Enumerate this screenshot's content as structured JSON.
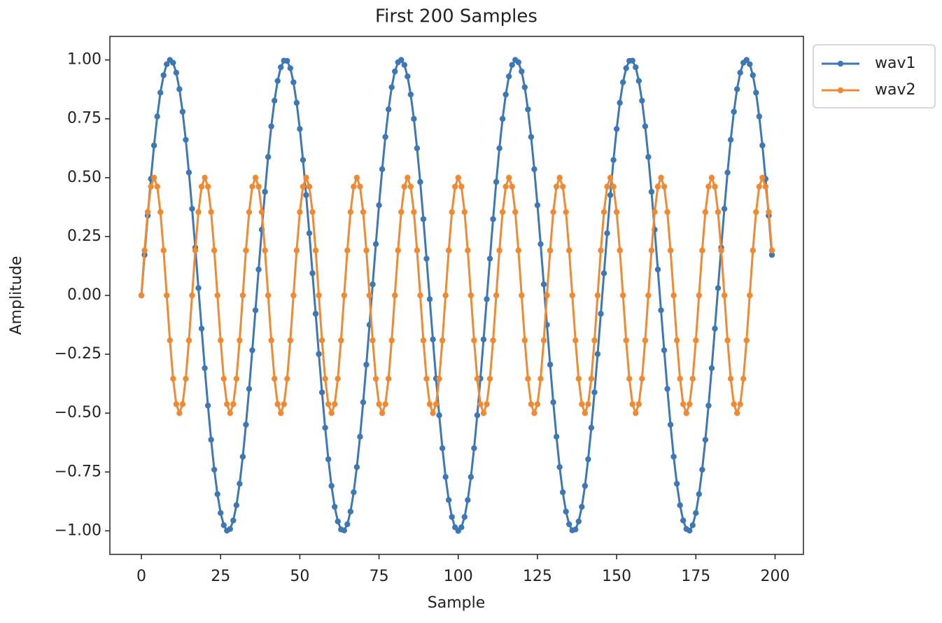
{
  "chart_data": {
    "type": "line",
    "title": "First 200 Samples",
    "xlabel": "Sample",
    "ylabel": "Amplitude",
    "xlim": [
      -9.95,
      208.95
    ],
    "ylim": [
      -1.1,
      1.1
    ],
    "xticks": [
      0,
      25,
      50,
      75,
      100,
      125,
      150,
      175,
      200
    ],
    "yticks": [
      {
        "value": 1,
        "label": "1.00"
      },
      {
        "value": 0.75,
        "label": "0.75"
      },
      {
        "value": 0.5,
        "label": "0.50"
      },
      {
        "value": 0.25,
        "label": "0.25"
      },
      {
        "value": 0,
        "label": "0.00"
      },
      {
        "value": -0.25,
        "label": "−0.25"
      },
      {
        "value": -0.5,
        "label": "−0.50"
      },
      {
        "value": -0.75,
        "label": "−0.75"
      },
      {
        "value": -1,
        "label": "−1.00"
      }
    ],
    "grid": false,
    "legend": "outside upper right",
    "marker": "circle",
    "x": [
      0,
      1,
      2,
      3,
      4,
      5,
      6,
      7,
      8,
      9,
      10,
      11,
      12,
      13,
      14,
      15,
      16,
      17,
      18,
      19,
      20,
      21,
      22,
      23,
      24,
      25,
      26,
      27,
      28,
      29,
      30,
      31,
      32,
      33,
      34,
      35,
      36,
      37,
      38,
      39,
      40,
      41,
      42,
      43,
      44,
      45,
      46,
      47,
      48,
      49,
      50,
      51,
      52,
      53,
      54,
      55,
      56,
      57,
      58,
      59,
      60,
      61,
      62,
      63,
      64,
      65,
      66,
      67,
      68,
      69,
      70,
      71,
      72,
      73,
      74,
      75,
      76,
      77,
      78,
      79,
      80,
      81,
      82,
      83,
      84,
      85,
      86,
      87,
      88,
      89,
      90,
      91,
      92,
      93,
      94,
      95,
      96,
      97,
      98,
      99,
      100,
      101,
      102,
      103,
      104,
      105,
      106,
      107,
      108,
      109,
      110,
      111,
      112,
      113,
      114,
      115,
      116,
      117,
      118,
      119,
      120,
      121,
      122,
      123,
      124,
      125,
      126,
      127,
      128,
      129,
      130,
      131,
      132,
      133,
      134,
      135,
      136,
      137,
      138,
      139,
      140,
      141,
      142,
      143,
      144,
      145,
      146,
      147,
      148,
      149,
      150,
      151,
      152,
      153,
      154,
      155,
      156,
      157,
      158,
      159,
      160,
      161,
      162,
      163,
      164,
      165,
      166,
      167,
      168,
      169,
      170,
      171,
      172,
      173,
      174,
      175,
      176,
      177,
      178,
      179,
      180,
      181,
      182,
      183,
      184,
      185,
      186,
      187,
      188,
      189,
      190,
      191,
      192,
      193,
      194,
      195,
      196,
      197,
      198,
      199
    ],
    "series": [
      {
        "name": "wav1",
        "color": "#3d78b4",
        "values": [
          0,
          0.172,
          0.339,
          0.495,
          0.637,
          0.76,
          0.861,
          0.935,
          0.982,
          1,
          0.988,
          0.946,
          0.876,
          0.78,
          0.661,
          0.522,
          0.368,
          0.203,
          0.031,
          -0.141,
          -0.309,
          -0.468,
          -0.613,
          -0.74,
          -0.844,
          -0.924,
          -0.976,
          -0.999,
          -0.992,
          -0.956,
          -0.891,
          -0.8,
          -0.685,
          -0.549,
          -0.397,
          -0.233,
          -0.063,
          0.11,
          0.279,
          0.44,
          0.588,
          0.718,
          0.827,
          0.911,
          0.969,
          0.997,
          0.996,
          0.965,
          0.905,
          0.818,
          0.707,
          0.575,
          0.426,
          0.264,
          0.094,
          -0.078,
          -0.249,
          -0.412,
          -0.562,
          -0.696,
          -0.809,
          -0.898,
          -0.96,
          -0.994,
          -0.998,
          -0.972,
          -0.918,
          -0.836,
          -0.729,
          -0.6,
          -0.454,
          -0.294,
          -0.125,
          0.047,
          0.218,
          0.383,
          0.536,
          0.673,
          0.79,
          0.884,
          0.951,
          0.99,
          1,
          0.979,
          0.93,
          0.853,
          0.75,
          0.625,
          0.482,
          0.324,
          0.156,
          -0.016,
          -0.187,
          -0.353,
          -0.509,
          -0.649,
          -0.771,
          -0.869,
          -0.941,
          -0.985,
          -1,
          -0.985,
          -0.941,
          -0.869,
          -0.771,
          -0.649,
          -0.509,
          -0.353,
          -0.187,
          -0.016,
          0.156,
          0.324,
          0.482,
          0.625,
          0.75,
          0.853,
          0.93,
          0.979,
          1,
          0.99,
          0.951,
          0.884,
          0.79,
          0.673,
          0.536,
          0.383,
          0.218,
          0.047,
          -0.125,
          -0.294,
          -0.454,
          -0.6,
          -0.729,
          -0.836,
          -0.918,
          -0.972,
          -0.998,
          -0.994,
          -0.96,
          -0.898,
          -0.809,
          -0.696,
          -0.562,
          -0.412,
          -0.249,
          -0.078,
          0.094,
          0.264,
          0.426,
          0.575,
          0.707,
          0.818,
          0.905,
          0.965,
          0.996,
          0.997,
          0.969,
          0.911,
          0.827,
          0.718,
          0.588,
          0.44,
          0.279,
          0.11,
          -0.063,
          -0.233,
          -0.397,
          -0.549,
          -0.685,
          -0.8,
          -0.891,
          -0.956,
          -0.992,
          -0.999,
          -0.976,
          -0.924,
          -0.844,
          -0.74,
          -0.613,
          -0.468,
          -0.309,
          -0.141,
          0.031,
          0.203,
          0.368,
          0.522,
          0.661,
          0.78,
          0.876,
          0.946,
          0.988,
          1,
          0.982,
          0.935,
          0.861,
          0.76,
          0.637,
          0.495,
          0.339,
          0.172
        ]
      },
      {
        "name": "wav2",
        "color": "#f08a32",
        "values": [
          0,
          0.191,
          0.354,
          0.462,
          0.5,
          0.462,
          0.354,
          0.191,
          0,
          -0.191,
          -0.354,
          -0.462,
          -0.5,
          -0.462,
          -0.354,
          -0.191,
          0,
          0.191,
          0.354,
          0.462,
          0.5,
          0.462,
          0.354,
          0.191,
          0,
          -0.191,
          -0.354,
          -0.462,
          -0.5,
          -0.462,
          -0.354,
          -0.191,
          0,
          0.191,
          0.354,
          0.462,
          0.5,
          0.462,
          0.354,
          0.191,
          0,
          -0.191,
          -0.354,
          -0.462,
          -0.5,
          -0.462,
          -0.354,
          -0.191,
          0,
          0.191,
          0.354,
          0.462,
          0.5,
          0.462,
          0.354,
          0.191,
          0,
          -0.191,
          -0.354,
          -0.462,
          -0.5,
          -0.462,
          -0.354,
          -0.191,
          0,
          0.191,
          0.354,
          0.462,
          0.5,
          0.462,
          0.354,
          0.191,
          0,
          -0.191,
          -0.354,
          -0.462,
          -0.5,
          -0.462,
          -0.354,
          -0.191,
          0,
          0.191,
          0.354,
          0.462,
          0.5,
          0.462,
          0.354,
          0.191,
          0,
          -0.191,
          -0.354,
          -0.462,
          -0.5,
          -0.462,
          -0.354,
          -0.191,
          0,
          0.191,
          0.354,
          0.462,
          0.5,
          0.462,
          0.354,
          0.191,
          0,
          -0.191,
          -0.354,
          -0.462,
          -0.5,
          -0.462,
          -0.354,
          -0.191,
          0,
          0.191,
          0.354,
          0.462,
          0.5,
          0.462,
          0.354,
          0.191,
          0,
          -0.191,
          -0.354,
          -0.462,
          -0.5,
          -0.462,
          -0.354,
          -0.191,
          0,
          0.191,
          0.354,
          0.462,
          0.5,
          0.462,
          0.354,
          0.191,
          0,
          -0.191,
          -0.354,
          -0.462,
          -0.5,
          -0.462,
          -0.354,
          -0.191,
          0,
          0.191,
          0.354,
          0.462,
          0.5,
          0.462,
          0.354,
          0.191,
          0,
          -0.191,
          -0.354,
          -0.462,
          -0.5,
          -0.462,
          -0.354,
          -0.191,
          0,
          0.191,
          0.354,
          0.462,
          0.5,
          0.462,
          0.354,
          0.191,
          0,
          -0.191,
          -0.354,
          -0.462,
          -0.5,
          -0.462,
          -0.354,
          -0.191,
          0,
          0.191,
          0.354,
          0.462,
          0.5,
          0.462,
          0.354,
          0.191,
          0,
          -0.191,
          -0.354,
          -0.462,
          -0.5,
          -0.462,
          -0.354,
          -0.191,
          0,
          0.191,
          0.354,
          0.462,
          0.5,
          0.462,
          0.354,
          0.191
        ]
      }
    ]
  }
}
